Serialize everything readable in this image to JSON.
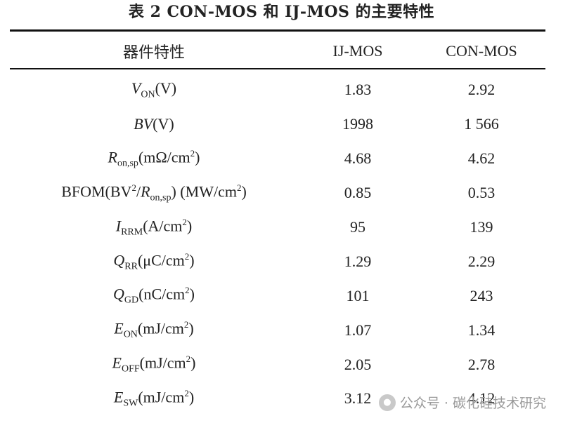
{
  "title": "表 2  CON-MOS 和 IJ-MOS 的主要特性",
  "table": {
    "headers": [
      "器件特性",
      "IJ-MOS",
      "CON-MOS"
    ],
    "rows": [
      {
        "param": "V_ON(V)",
        "ij": "1.83",
        "con": "2.92"
      },
      {
        "param": "BV(V)",
        "ij": "1998",
        "con": "1 566"
      },
      {
        "param": "R_on,sp(mΩ/cm²)",
        "ij": "4.68",
        "con": "4.62"
      },
      {
        "param": "BFOM(BV²/R_on,sp) (MW/cm²)",
        "ij": "0.85",
        "con": "0.53"
      },
      {
        "param": "I_RRM(A/cm²)",
        "ij": "95",
        "con": "139"
      },
      {
        "param": "Q_RR(μC/cm²)",
        "ij": "1.29",
        "con": "2.29"
      },
      {
        "param": "Q_GD(nC/cm²)",
        "ij": "101",
        "con": "243"
      },
      {
        "param": "E_ON(mJ/cm²)",
        "ij": "1.07",
        "con": "1.34"
      },
      {
        "param": "E_OFF(mJ/cm²)",
        "ij": "2.05",
        "con": "2.78"
      },
      {
        "param": "E_SW(mJ/cm²)",
        "ij": "3.12",
        "con": "4.12"
      }
    ]
  },
  "watermark": {
    "icon": "wechat-icon",
    "text": "公众号 · 碳化硅技术研究"
  }
}
